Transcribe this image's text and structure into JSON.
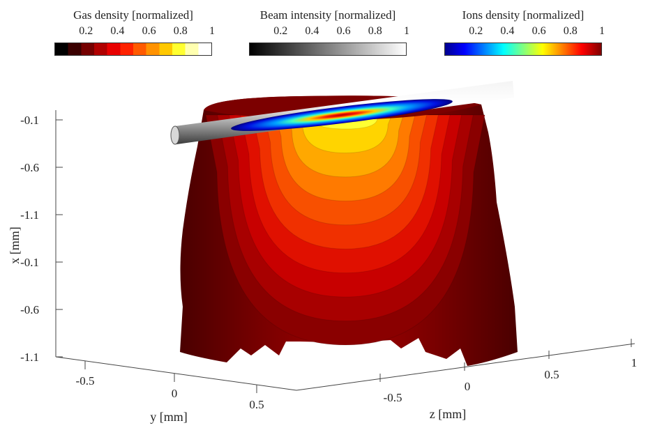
{
  "colorbars": [
    {
      "title": "Gas density [normalized]",
      "ticks": [
        "0.2",
        "0.4",
        "0.6",
        "0.8",
        "1"
      ],
      "colormap": "hot",
      "colors": [
        "#000000",
        "#3a0000",
        "#750000",
        "#b00000",
        "#e80000",
        "#ff2200",
        "#ff5a00",
        "#ff9200",
        "#ffc800",
        "#ffff30",
        "#ffffb0",
        "#ffffff"
      ]
    },
    {
      "title": "Beam intensity [normalized]",
      "ticks": [
        "0.2",
        "0.4",
        "0.6",
        "0.8",
        "1"
      ],
      "colormap": "gray",
      "colors": [
        "#000000",
        "#ffffff"
      ]
    },
    {
      "title": "Ions density [normalized]",
      "ticks": [
        "0.2",
        "0.4",
        "0.6",
        "0.8",
        "1"
      ],
      "colormap": "jet",
      "colors": [
        "#00008f",
        "#0000ff",
        "#0080ff",
        "#00ffff",
        "#80ff80",
        "#ffff00",
        "#ff8000",
        "#ff0000",
        "#800000"
      ]
    }
  ],
  "chart_data": {
    "type": "3d-isosurface",
    "axes": {
      "x": {
        "label": "x [mm]",
        "ticks": [
          "-0.1",
          "-0.6",
          "-1.1",
          "-0.1",
          "-0.6",
          "-1.1"
        ]
      },
      "y": {
        "label": "y [mm]",
        "ticks": [
          "-0.5",
          "0",
          "0.5"
        ]
      },
      "z": {
        "label": "z [mm]",
        "ticks": [
          "-0.5",
          "0",
          "0.5",
          "1"
        ]
      }
    },
    "series": [
      {
        "name": "Gas density",
        "levels": [
          0.1,
          0.2,
          0.3,
          0.4,
          0.5,
          0.6,
          0.7,
          0.8,
          0.9
        ]
      },
      {
        "name": "Beam intensity",
        "levels": [
          1.0
        ]
      },
      {
        "name": "Ions density",
        "levels": [
          0.2,
          0.5,
          0.8,
          1.0
        ]
      }
    ]
  }
}
